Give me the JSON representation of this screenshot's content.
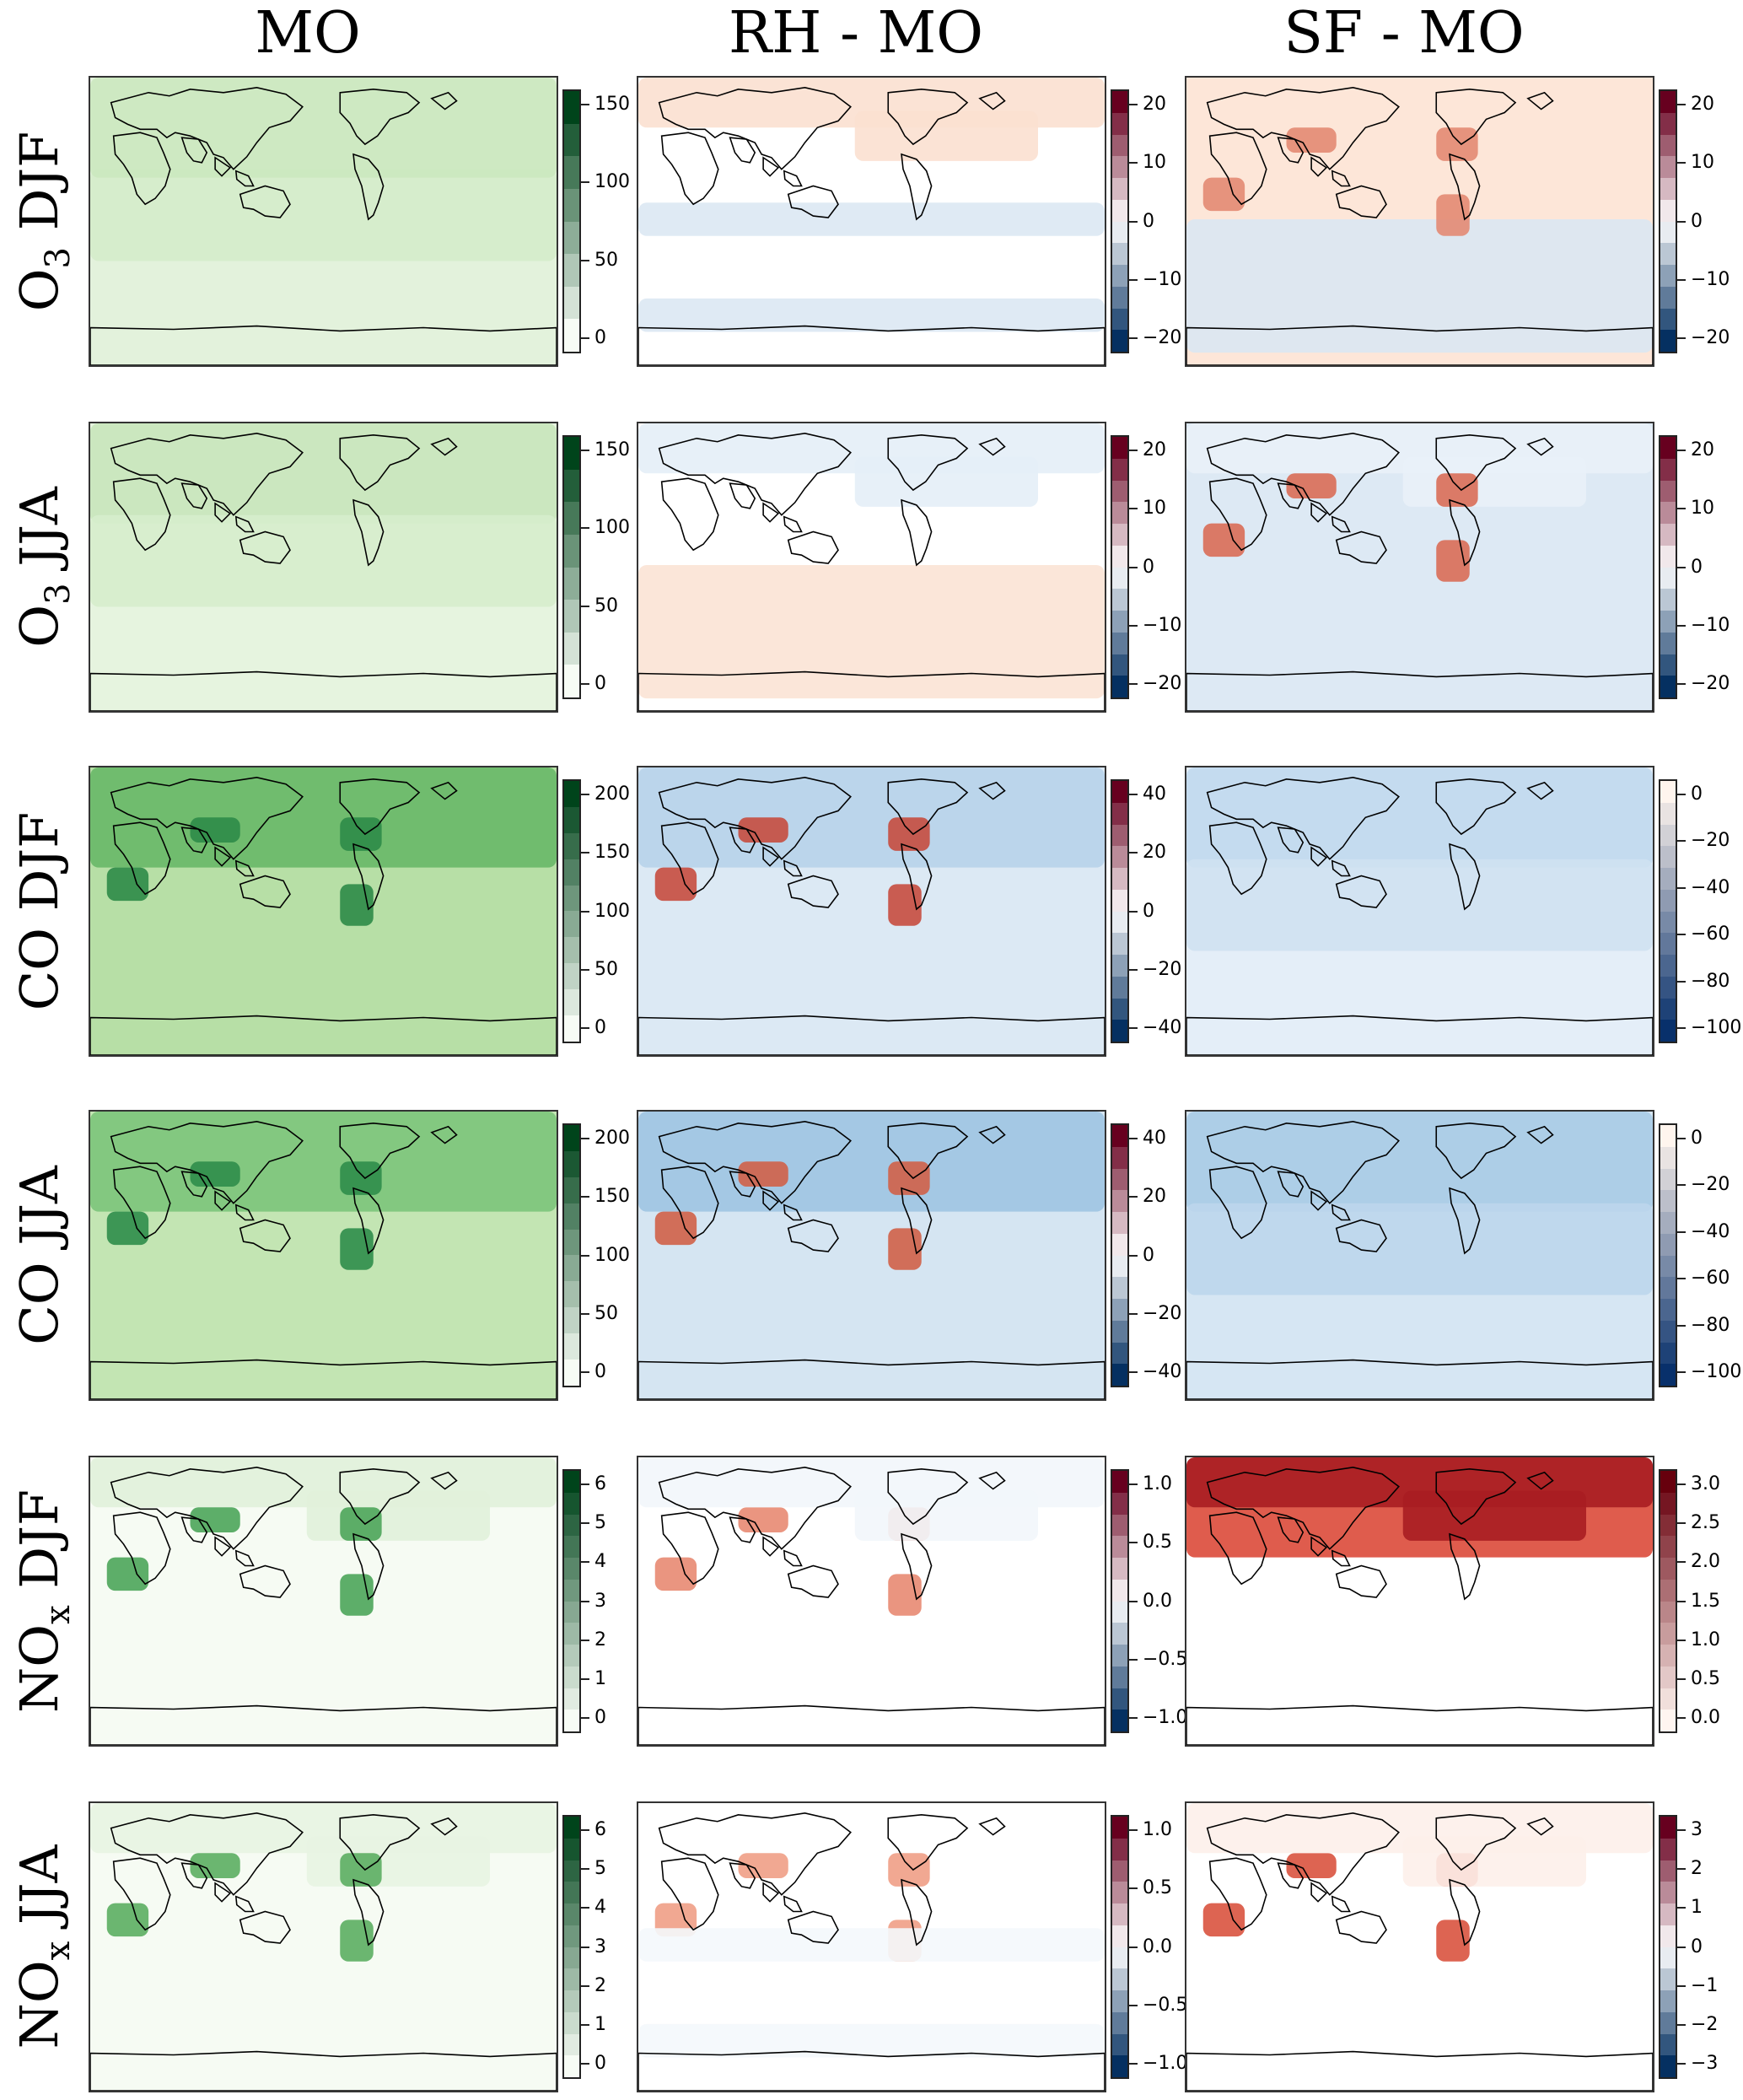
{
  "column_titles": [
    "MO",
    "RH - MO",
    "SF - MO"
  ],
  "rows": [
    {
      "label_parts": [
        [
          "O",
          ""
        ],
        [
          "3",
          "sub"
        ],
        [
          " DJF",
          ""
        ]
      ],
      "label_text": "O3 DJF",
      "panels": [
        {
          "palette": "greens",
          "levels": 8,
          "ticks": [
            "150",
            "100",
            "50",
            "0"
          ],
          "fill": "#e3f2dc",
          "regions": [
            {
              "shape": "tropics",
              "color": "#d4ecca"
            },
            {
              "shape": "nh",
              "color": "#cbe8bf"
            }
          ]
        },
        {
          "palette": "div",
          "levels": 12,
          "ticks": [
            "20",
            "10",
            "0",
            "−10",
            "−20"
          ],
          "fill": "#ffffff",
          "regions": [
            {
              "shape": "north",
              "color": "#fbe0d0"
            },
            {
              "shape": "south-band",
              "color": "#dbe8f3"
            }
          ]
        },
        {
          "palette": "div",
          "levels": 12,
          "ticks": [
            "20",
            "10",
            "0",
            "−10",
            "−20"
          ],
          "fill": "#fde6d8",
          "regions": [
            {
              "shape": "south",
              "color": "#dae7f3"
            },
            {
              "shape": "hot",
              "color": "#e38a73"
            }
          ]
        }
      ]
    },
    {
      "label_parts": [
        [
          "O",
          ""
        ],
        [
          "3",
          "sub"
        ],
        [
          " JJA",
          ""
        ]
      ],
      "label_text": "O3 JJA",
      "panels": [
        {
          "palette": "greens",
          "levels": 8,
          "ticks": [
            "150",
            "100",
            "50",
            "0"
          ],
          "fill": "#e6f4df",
          "regions": [
            {
              "shape": "nh",
              "color": "#c8e6bb"
            },
            {
              "shape": "tropics",
              "color": "#d6edcc"
            }
          ]
        },
        {
          "palette": "div",
          "levels": 12,
          "ticks": [
            "20",
            "10",
            "0",
            "−10",
            "−20"
          ],
          "fill": "#ffffff",
          "regions": [
            {
              "shape": "south",
              "color": "#fbe3d5"
            },
            {
              "shape": "north",
              "color": "#e4eef7"
            }
          ]
        },
        {
          "palette": "div",
          "levels": 12,
          "ticks": [
            "20",
            "10",
            "0",
            "−10",
            "−20"
          ],
          "fill": "#dde9f4",
          "regions": [
            {
              "shape": "north",
              "color": "#e9f1f8"
            },
            {
              "shape": "hot",
              "color": "#d96d57"
            }
          ]
        }
      ]
    },
    {
      "label_parts": [
        [
          "CO DJF",
          ""
        ]
      ],
      "label_text": "CO DJF",
      "panels": [
        {
          "palette": "greens",
          "levels": 10,
          "ticks": [
            "200",
            "150",
            "100",
            "50",
            "0"
          ],
          "fill": "#b7dfa6",
          "regions": [
            {
              "shape": "nh",
              "color": "#68b868"
            },
            {
              "shape": "hot",
              "color": "#2e8b48"
            }
          ]
        },
        {
          "palette": "div",
          "levels": 12,
          "ticks": [
            "40",
            "20",
            "0",
            "−20",
            "−40"
          ],
          "fill": "#dce9f4",
          "regions": [
            {
              "shape": "nh",
              "color": "#b7d3ea"
            },
            {
              "shape": "hot",
              "color": "#c64c3f"
            }
          ]
        },
        {
          "palette": "blues-rev",
          "levels": 12,
          "ticks": [
            "0",
            "−20",
            "−40",
            "−60",
            "−80",
            "−100"
          ],
          "fill": "#e4eef8",
          "regions": [
            {
              "shape": "nh",
              "color": "#c0d8ed"
            },
            {
              "shape": "tropics",
              "color": "#cfe1f1"
            }
          ]
        }
      ]
    },
    {
      "label_parts": [
        [
          "CO JJA",
          ""
        ]
      ],
      "label_text": "CO JJA",
      "panels": [
        {
          "palette": "greens",
          "levels": 10,
          "ticks": [
            "200",
            "150",
            "100",
            "50",
            "0"
          ],
          "fill": "#c3e5b3",
          "regions": [
            {
              "shape": "nh",
              "color": "#7cc47a"
            },
            {
              "shape": "hot",
              "color": "#2f8d4a"
            }
          ]
        },
        {
          "palette": "div",
          "levels": 12,
          "ticks": [
            "40",
            "20",
            "0",
            "−20",
            "−40"
          ],
          "fill": "#d5e5f2",
          "regions": [
            {
              "shape": "nh",
              "color": "#9ec4e2"
            },
            {
              "shape": "hot",
              "color": "#d06048"
            }
          ]
        },
        {
          "palette": "blues-rev",
          "levels": 12,
          "ticks": [
            "0",
            "−20",
            "−40",
            "−60",
            "−80",
            "−100"
          ],
          "fill": "#d6e6f3",
          "regions": [
            {
              "shape": "nh",
              "color": "#a9cbe6"
            },
            {
              "shape": "tropics",
              "color": "#bcd6ec"
            }
          ]
        }
      ]
    },
    {
      "label_parts": [
        [
          "NO",
          ""
        ],
        [
          "x",
          "sub"
        ],
        [
          " DJF",
          ""
        ]
      ],
      "label_text": "NOx DJF",
      "panels": [
        {
          "palette": "greens",
          "levels": 12,
          "ticks": [
            "6",
            "5",
            "4",
            "3",
            "2",
            "1",
            "0"
          ],
          "fill": "#f6fbf3",
          "regions": [
            {
              "shape": "north",
              "color": "#e1f1da"
            },
            {
              "shape": "hot",
              "color": "#4da55a"
            }
          ]
        },
        {
          "palette": "div",
          "levels": 12,
          "ticks": [
            "1.0",
            "0.5",
            "0.0",
            "−0.5",
            "−1.0"
          ],
          "fill": "#ffffff",
          "regions": [
            {
              "shape": "hot",
              "color": "#e88a72"
            },
            {
              "shape": "north",
              "color": "#f2f6fb"
            }
          ]
        },
        {
          "palette": "reds",
          "levels": 12,
          "ticks": [
            "3.0",
            "2.5",
            "2.0",
            "1.5",
            "1.0",
            "0.5",
            "0.0"
          ],
          "fill": "#ffffff",
          "regions": [
            {
              "shape": "nh",
              "color": "#dc4a3a"
            },
            {
              "shape": "north",
              "color": "#a91d22"
            }
          ]
        }
      ]
    },
    {
      "label_parts": [
        [
          "NO",
          ""
        ],
        [
          "x",
          "sub"
        ],
        [
          " JJA",
          ""
        ]
      ],
      "label_text": "NOx JJA",
      "panels": [
        {
          "palette": "greens",
          "levels": 12,
          "ticks": [
            "6",
            "5",
            "4",
            "3",
            "2",
            "1",
            "0"
          ],
          "fill": "#f6fbf3",
          "regions": [
            {
              "shape": "north",
              "color": "#e8f4e2"
            },
            {
              "shape": "hot",
              "color": "#5cae62"
            }
          ]
        },
        {
          "palette": "div",
          "levels": 12,
          "ticks": [
            "1.0",
            "0.5",
            "0.0",
            "−0.5",
            "−1.0"
          ],
          "fill": "#ffffff",
          "regions": [
            {
              "shape": "hot",
              "color": "#ef9f86"
            },
            {
              "shape": "south-band",
              "color": "#f4f8fc"
            }
          ]
        },
        {
          "palette": "div",
          "levels": 12,
          "ticks": [
            "3",
            "2",
            "1",
            "0",
            "−1",
            "−2",
            "−3"
          ],
          "fill": "#ffffff",
          "regions": [
            {
              "shape": "hot",
              "color": "#d9533f"
            },
            {
              "shape": "north",
              "color": "#fdf0ea"
            }
          ]
        }
      ]
    }
  ]
}
